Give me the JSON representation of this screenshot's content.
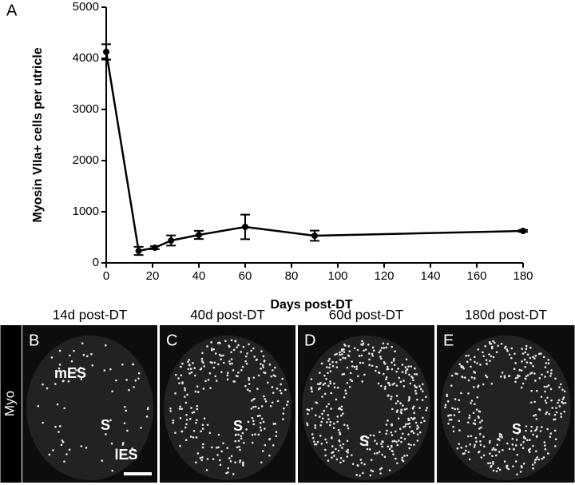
{
  "chart_data": {
    "type": "line",
    "panel_letter": "A",
    "x_label": "Days post-DT",
    "y_label": "Myosin VIIa+ cells per utricle",
    "x": [
      0,
      14,
      21,
      28,
      40,
      60,
      90,
      180
    ],
    "values": [
      4125,
      234,
      297,
      437,
      547,
      703,
      531,
      625
    ],
    "errors": [
      150,
      80,
      30,
      100,
      80,
      240,
      100,
      20
    ],
    "color": "#000000",
    "xlim": [
      0,
      180
    ],
    "xticks": [
      0,
      20,
      40,
      60,
      80,
      100,
      120,
      140,
      160,
      180
    ],
    "ylim": [
      0,
      5000
    ],
    "yticks": [
      0,
      1000,
      2000,
      3000,
      4000,
      5000
    ]
  },
  "panels": {
    "stain": "Myo",
    "items": [
      {
        "letter": "B",
        "title": "14d post-DT",
        "labels": [
          "mES",
          "S",
          "lES"
        ]
      },
      {
        "letter": "C",
        "title": "40d post-DT",
        "labels": [
          "S"
        ]
      },
      {
        "letter": "D",
        "title": "60d post-DT",
        "labels": [
          "S"
        ]
      },
      {
        "letter": "E",
        "title": "180d post-DT",
        "labels": [
          "S"
        ]
      }
    ]
  }
}
